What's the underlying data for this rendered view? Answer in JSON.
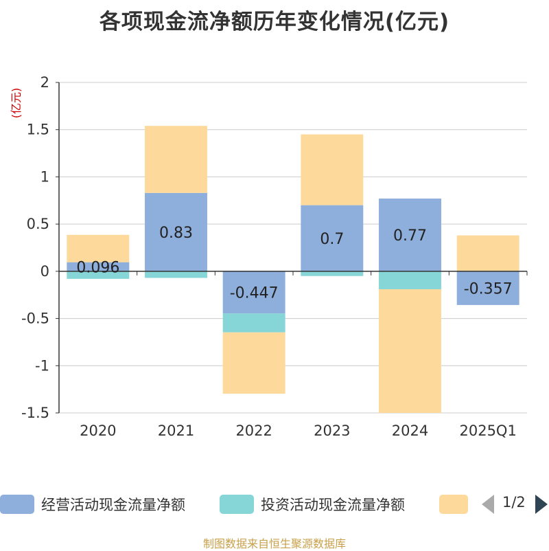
{
  "title": "各项现金流净额历年变化情况(亿元)",
  "unit": "(亿元)",
  "source": "制图数据来自恒生聚源数据库",
  "legend": {
    "items": [
      {
        "name": "经营活动现金流量净额",
        "color": "#8eaedb"
      },
      {
        "name": "投资活动现金流量净额",
        "color": "#86d5d7"
      },
      {
        "name": "",
        "color": "#fdd99b"
      }
    ],
    "page": "1/2"
  },
  "chart_data": {
    "type": "bar",
    "stacked": true,
    "categories": [
      "2020",
      "2021",
      "2022",
      "2023",
      "2024",
      "2025Q1"
    ],
    "ylim": [
      -1.5,
      2
    ],
    "yticks": [
      2,
      1.5,
      1,
      0.5,
      0,
      -0.5,
      -1,
      -1.5
    ],
    "ytick_labels": [
      "2",
      "1.5",
      "1",
      "0.5",
      "0",
      "-0.5",
      "-1",
      "-1.5"
    ],
    "grid": true,
    "legend_position": "bottom",
    "series": [
      {
        "name": "经营活动现金流量净额",
        "color": "#8eaedb",
        "values": [
          0.096,
          0.83,
          -0.447,
          0.7,
          0.77,
          -0.357
        ],
        "labels": [
          "0.096",
          "0.83",
          "-0.447",
          "0.7",
          "0.77",
          "-0.357"
        ]
      },
      {
        "name": "投资活动现金流量净额",
        "color": "#86d5d7",
        "values": [
          -0.08,
          -0.07,
          -0.2,
          -0.05,
          -0.19,
          0
        ]
      },
      {
        "color": "#fdd99b",
        "values": [
          0.29,
          0.71,
          -0.65,
          0.75,
          -1.31,
          0.38
        ]
      }
    ]
  }
}
